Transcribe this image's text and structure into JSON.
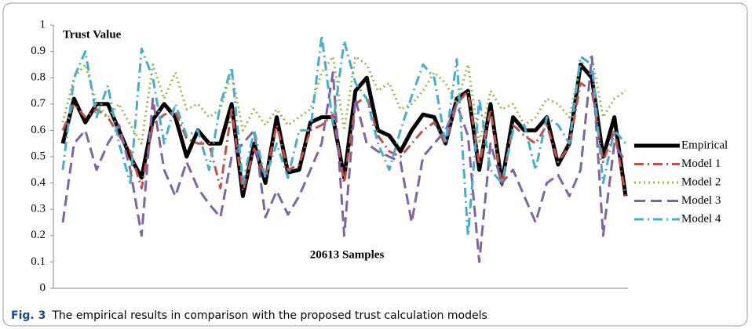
{
  "chart_data": {
    "type": "line",
    "annotations": [
      "Trust Value",
      "20613 Samples"
    ],
    "ylim": [
      0,
      1
    ],
    "yticks": [
      0,
      0.1,
      0.2,
      0.3,
      0.4,
      0.5,
      0.6,
      0.7,
      0.8,
      0.9,
      1
    ],
    "grid": false,
    "legend": "right",
    "series": [
      {
        "name": "Empirical",
        "color": "#000000",
        "style": "solid",
        "values": [
          0.55,
          0.72,
          0.63,
          0.7,
          0.7,
          0.6,
          0.5,
          0.42,
          0.64,
          0.7,
          0.65,
          0.5,
          0.6,
          0.55,
          0.55,
          0.7,
          0.35,
          0.55,
          0.4,
          0.65,
          0.44,
          0.45,
          0.63,
          0.65,
          0.65,
          0.42,
          0.75,
          0.8,
          0.6,
          0.58,
          0.52,
          0.6,
          0.66,
          0.65,
          0.55,
          0.72,
          0.75,
          0.45,
          0.7,
          0.4,
          0.65,
          0.6,
          0.6,
          0.65,
          0.47,
          0.55,
          0.85,
          0.8,
          0.5,
          0.65,
          0.35
        ]
      },
      {
        "name": "Model 1",
        "color": "#c0504d",
        "style": "dash-dot",
        "values": [
          0.6,
          0.7,
          0.65,
          0.68,
          0.65,
          0.58,
          0.52,
          0.38,
          0.62,
          0.66,
          0.67,
          0.57,
          0.55,
          0.55,
          0.38,
          0.68,
          0.37,
          0.53,
          0.42,
          0.62,
          0.45,
          0.47,
          0.6,
          0.62,
          0.66,
          0.4,
          0.7,
          0.73,
          0.58,
          0.52,
          0.5,
          0.55,
          0.6,
          0.63,
          0.55,
          0.7,
          0.75,
          0.47,
          0.68,
          0.39,
          0.62,
          0.58,
          0.55,
          0.62,
          0.48,
          0.54,
          0.78,
          0.75,
          0.48,
          0.6,
          0.35
        ]
      },
      {
        "name": "Model 2",
        "color": "#9bbb59",
        "style": "dot",
        "values": [
          0.63,
          0.8,
          0.85,
          0.7,
          0.65,
          0.7,
          0.62,
          0.55,
          0.85,
          0.72,
          0.82,
          0.68,
          0.7,
          0.65,
          0.68,
          0.82,
          0.6,
          0.68,
          0.62,
          0.68,
          0.62,
          0.65,
          0.68,
          0.82,
          0.88,
          0.6,
          0.88,
          0.85,
          0.75,
          0.78,
          0.68,
          0.7,
          0.75,
          0.82,
          0.78,
          0.7,
          0.85,
          0.55,
          0.75,
          0.68,
          0.7,
          0.62,
          0.65,
          0.72,
          0.7,
          0.65,
          0.85,
          0.88,
          0.65,
          0.72,
          0.75
        ]
      },
      {
        "name": "Model 3",
        "color": "#8064a2",
        "style": "dash",
        "values": [
          0.25,
          0.55,
          0.6,
          0.45,
          0.55,
          0.62,
          0.45,
          0.2,
          0.72,
          0.45,
          0.35,
          0.48,
          0.38,
          0.32,
          0.27,
          0.5,
          0.55,
          0.6,
          0.27,
          0.37,
          0.28,
          0.35,
          0.45,
          0.55,
          0.82,
          0.2,
          0.72,
          0.55,
          0.52,
          0.5,
          0.48,
          0.25,
          0.5,
          0.55,
          0.6,
          0.7,
          0.58,
          0.1,
          0.55,
          0.4,
          0.45,
          0.35,
          0.25,
          0.4,
          0.43,
          0.35,
          0.45,
          0.88,
          0.2,
          0.55,
          0.48
        ]
      },
      {
        "name": "Model 4",
        "color": "#4bacc6",
        "style": "dash-dot",
        "values": [
          0.45,
          0.8,
          0.9,
          0.65,
          0.77,
          0.55,
          0.4,
          0.91,
          0.8,
          0.55,
          0.7,
          0.58,
          0.6,
          0.45,
          0.7,
          0.84,
          0.4,
          0.6,
          0.42,
          0.55,
          0.42,
          0.6,
          0.6,
          0.96,
          0.62,
          0.94,
          0.78,
          0.72,
          0.55,
          0.45,
          0.6,
          0.73,
          0.85,
          0.8,
          0.55,
          0.87,
          0.2,
          0.72,
          0.45,
          0.4,
          0.6,
          0.62,
          0.45,
          0.65,
          0.62,
          0.55,
          0.88,
          0.85,
          0.4,
          0.6,
          0.55
        ]
      }
    ]
  },
  "caption": {
    "label": "Fig. 3",
    "text": "The empirical results in comparison with the proposed trust calculation models"
  }
}
